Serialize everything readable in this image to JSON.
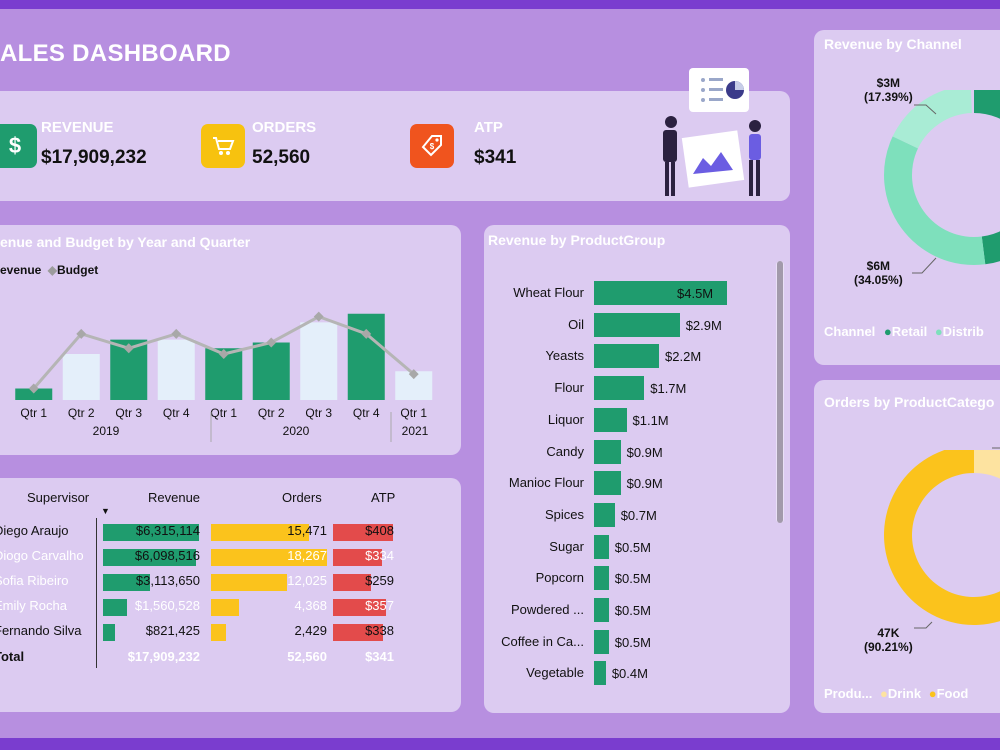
{
  "title": "ALES DASHBOARD",
  "kpis": [
    {
      "label": "REVENUE",
      "value": "$17,909,232",
      "icon": "dollar-icon",
      "color": "#1f9c6e",
      "glyph": "$"
    },
    {
      "label": "ORDERS",
      "value": "52,560",
      "icon": "cart-icon",
      "color": "#f7c20f",
      "glyph": "🛒"
    },
    {
      "label": "ATP",
      "value": "$341",
      "icon": "price-tag-icon",
      "color": "#f0541e",
      "glyph": "🏷"
    }
  ],
  "combo": {
    "title": "enue and Budget by Year and Quarter",
    "legend": {
      "revenue": "evenue",
      "budget": "Budget"
    },
    "quarters": [
      "Qtr 1",
      "Qtr 2",
      "Qtr 3",
      "Qtr 4",
      "Qtr 1",
      "Qtr 2",
      "Qtr 3",
      "Qtr 4",
      "Qtr 1"
    ],
    "years": [
      "2019",
      "2020",
      "2021"
    ]
  },
  "table": {
    "headers": {
      "supervisor": "Supervisor",
      "revenue": "Revenue",
      "orders": "Orders",
      "atp": "ATP"
    },
    "rows": [
      {
        "name": "Diego Araujo",
        "revenue": "$6,315,114",
        "orders": "15,471",
        "atp": "$408"
      },
      {
        "name": "Diogo Carvalho",
        "revenue": "$6,098,516",
        "orders": "18,267",
        "atp": "$334"
      },
      {
        "name": "Sofia Ribeiro",
        "revenue": "$3,113,650",
        "orders": "12,025",
        "atp": "$259"
      },
      {
        "name": "Emily Rocha",
        "revenue": "$1,560,528",
        "orders": "4,368",
        "atp": "$357"
      },
      {
        "name": "Fernando Silva",
        "revenue": "$821,425",
        "orders": "2,429",
        "atp": "$338"
      }
    ],
    "total": {
      "name": "Total",
      "revenue": "$17,909,232",
      "orders": "52,560",
      "atp": "$341"
    }
  },
  "product_group": {
    "title": "Revenue by ProductGroup",
    "items": [
      {
        "label": "Wheat Flour",
        "value": "$4.5M"
      },
      {
        "label": "Oil",
        "value": "$2.9M"
      },
      {
        "label": "Yeasts",
        "value": "$2.2M"
      },
      {
        "label": "Flour",
        "value": "$1.7M"
      },
      {
        "label": "Liquor",
        "value": "$1.1M"
      },
      {
        "label": "Candy",
        "value": "$0.9M"
      },
      {
        "label": "Manioc Flour",
        "value": "$0.9M"
      },
      {
        "label": "Spices",
        "value": "$0.7M"
      },
      {
        "label": "Sugar",
        "value": "$0.5M"
      },
      {
        "label": "Popcorn",
        "value": "$0.5M"
      },
      {
        "label": "Powdered ...",
        "value": "$0.5M"
      },
      {
        "label": "Coffee in Ca...",
        "value": "$0.5M"
      },
      {
        "label": "Vegetable",
        "value": "$0.4M"
      }
    ]
  },
  "channel": {
    "title": "Revenue by Channel",
    "label_top": {
      "value": "$3M",
      "pct": "(17.39%)"
    },
    "label_bottom": {
      "value": "$6M",
      "pct": "(34.05%)"
    },
    "legend": {
      "title": "Channel",
      "a": "Retail",
      "b": "Distrib"
    }
  },
  "category": {
    "title": "Orders by ProductCatego",
    "label": {
      "value": "47K",
      "pct": "(90.21%)"
    },
    "legend": {
      "title": "Produ...",
      "a": "Drink",
      "b": "Food"
    }
  },
  "chart_data": [
    {
      "type": "bar",
      "title": "Revenue and Budget by Year and Quarter",
      "categories": [
        "2019 Qtr 1",
        "2019 Qtr 2",
        "2019 Qtr 3",
        "2019 Qtr 4",
        "2020 Qtr 1",
        "2020 Qtr 2",
        "2020 Qtr 3",
        "2020 Qtr 4",
        "2021 Qtr 1"
      ],
      "series": [
        {
          "name": "Revenue",
          "type": "bar",
          "values": [
            0.4,
            1.6,
            2.1,
            2.1,
            1.8,
            2.0,
            2.7,
            3.0,
            1.0
          ]
        },
        {
          "name": "Budget",
          "type": "line",
          "values": [
            0.4,
            2.3,
            1.8,
            2.3,
            1.6,
            2.0,
            2.9,
            2.3,
            0.9
          ]
        }
      ]
    },
    {
      "type": "bar",
      "title": "Revenue by ProductGroup",
      "categories": [
        "Wheat Flour",
        "Oil",
        "Yeasts",
        "Flour",
        "Liquor",
        "Candy",
        "Manioc Flour",
        "Spices",
        "Sugar",
        "Popcorn",
        "Powdered ...",
        "Coffee in Ca...",
        "Vegetable"
      ],
      "values": [
        4.5,
        2.9,
        2.2,
        1.7,
        1.1,
        0.9,
        0.9,
        0.7,
        0.5,
        0.5,
        0.5,
        0.5,
        0.4
      ]
    },
    {
      "type": "pie",
      "title": "Revenue by Channel",
      "categories": [
        "Retail",
        "Distributor"
      ],
      "values": [
        6,
        3
      ]
    },
    {
      "type": "pie",
      "title": "Orders by ProductCategory",
      "categories": [
        "Food",
        "Drink"
      ],
      "values": [
        90.21,
        9.79
      ]
    }
  ],
  "colors": {
    "green": "#1f9c6e",
    "lightBlue": "#e4effa",
    "gray": "#b5b5b5",
    "yellow": "#fbc31c",
    "lightYellow": "#fde3a0",
    "red": "#e34b4b",
    "mint": "#7ee0bc",
    "paleMint": "#a9ecd5"
  }
}
